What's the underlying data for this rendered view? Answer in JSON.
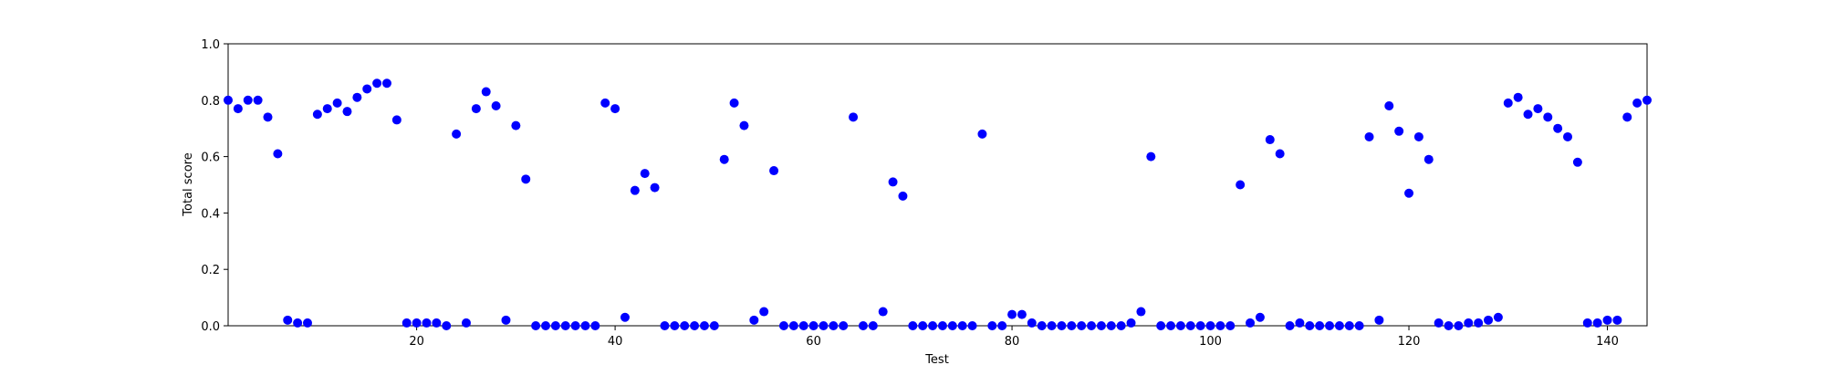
{
  "chart_data": {
    "type": "scatter",
    "title": "",
    "xlabel": "Test",
    "ylabel": "Total score",
    "xlim": [
      1,
      144
    ],
    "ylim": [
      0.0,
      1.0
    ],
    "x_ticks": [
      20,
      40,
      60,
      80,
      100,
      120,
      140
    ],
    "x_tick_labels": [
      "20",
      "40",
      "60",
      "80",
      "100",
      "120",
      "140"
    ],
    "y_ticks": [
      0.0,
      0.2,
      0.4,
      0.6,
      0.8,
      1.0
    ],
    "y_tick_labels": [
      "0.0",
      "0.2",
      "0.4",
      "0.6",
      "0.8",
      "1.0"
    ],
    "grid": false,
    "marker_color": "#0000ff",
    "x": [
      1,
      2,
      3,
      4,
      5,
      6,
      7,
      8,
      9,
      10,
      11,
      12,
      13,
      14,
      15,
      16,
      17,
      18,
      19,
      20,
      21,
      22,
      23,
      24,
      25,
      26,
      27,
      28,
      29,
      30,
      31,
      32,
      33,
      34,
      35,
      36,
      37,
      38,
      39,
      40,
      41,
      42,
      43,
      44,
      45,
      46,
      47,
      48,
      49,
      50,
      51,
      52,
      53,
      54,
      55,
      56,
      57,
      58,
      59,
      60,
      61,
      62,
      63,
      64,
      65,
      66,
      67,
      68,
      69,
      70,
      71,
      72,
      73,
      74,
      75,
      76,
      77,
      78,
      79,
      80,
      81,
      82,
      83,
      84,
      85,
      86,
      87,
      88,
      89,
      90,
      91,
      92,
      93,
      94,
      95,
      96,
      97,
      98,
      99,
      100,
      101,
      102,
      103,
      104,
      105,
      106,
      107,
      108,
      109,
      110,
      111,
      112,
      113,
      114,
      115,
      116,
      117,
      118,
      119,
      120,
      121,
      122,
      123,
      124,
      125,
      126,
      127,
      128,
      129,
      130,
      131,
      132,
      133,
      134,
      135,
      136,
      137,
      138,
      139,
      140,
      141,
      142,
      143,
      144
    ],
    "y": [
      0.8,
      0.77,
      0.8,
      0.8,
      0.74,
      0.61,
      0.02,
      0.01,
      0.01,
      0.75,
      0.77,
      0.79,
      0.76,
      0.81,
      0.84,
      0.86,
      0.86,
      0.73,
      0.01,
      0.01,
      0.01,
      0.01,
      0.0,
      0.68,
      0.01,
      0.77,
      0.83,
      0.78,
      0.02,
      0.71,
      0.52,
      0.0,
      0.0,
      0.0,
      0.0,
      0.0,
      0.0,
      0.0,
      0.79,
      0.77,
      0.03,
      0.48,
      0.54,
      0.49,
      0.0,
      0.0,
      0.0,
      0.0,
      0.0,
      0.0,
      0.59,
      0.79,
      0.71,
      0.02,
      0.05,
      0.55,
      0.0,
      0.0,
      0.0,
      0.0,
      0.0,
      0.0,
      0.0,
      0.74,
      0.0,
      0.0,
      0.05,
      0.51,
      0.46,
      0.0,
      0.0,
      0.0,
      0.0,
      0.0,
      0.0,
      0.0,
      0.68,
      0.0,
      0.0,
      0.04,
      0.04,
      0.01,
      0.0,
      0.0,
      0.0,
      0.0,
      0.0,
      0.0,
      0.0,
      0.0,
      0.0,
      0.01,
      0.05,
      0.6,
      0.0,
      0.0,
      0.0,
      0.0,
      0.0,
      0.0,
      0.0,
      0.0,
      0.5,
      0.01,
      0.03,
      0.66,
      0.61,
      0.0,
      0.01,
      0.0,
      0.0,
      0.0,
      0.0,
      0.0,
      0.0,
      0.67,
      0.02,
      0.78,
      0.69,
      0.47,
      0.67,
      0.59,
      0.01,
      0.0,
      0.0,
      0.01,
      0.01,
      0.02,
      0.03,
      0.79,
      0.81,
      0.75,
      0.77,
      0.74,
      0.7,
      0.67,
      0.58,
      0.01,
      0.01,
      0.02,
      0.02,
      0.74,
      0.79,
      0.8
    ]
  }
}
